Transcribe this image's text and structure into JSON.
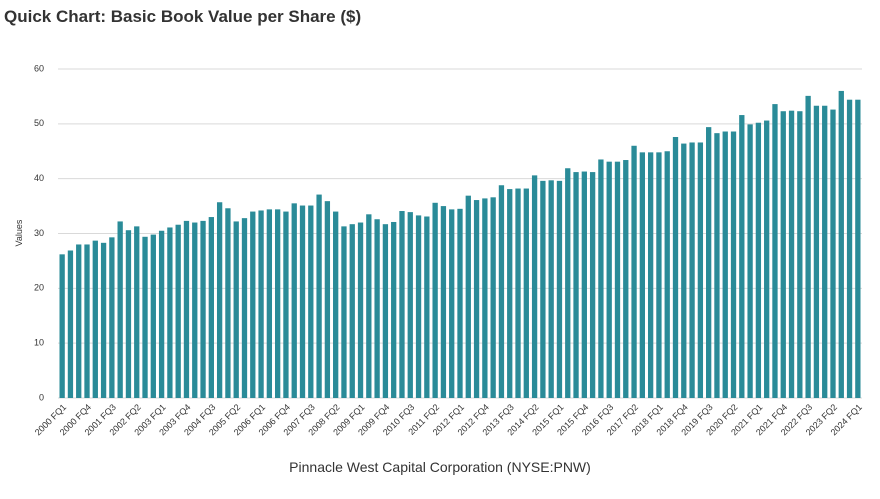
{
  "chart_data": {
    "type": "bar",
    "title": "Quick Chart: Basic Book Value per Share ($)",
    "y_label": "Values",
    "x_label": "Pinnacle West Capital Corporation (NYSE:PNW)",
    "color": "#2a8b98",
    "grid": true,
    "ylim": [
      0,
      60
    ],
    "yticks": [
      0,
      10,
      20,
      30,
      40,
      50,
      60
    ],
    "categories": [
      "2000 FQ1",
      null,
      null,
      "2000 FQ4",
      null,
      null,
      "2001 FQ3",
      null,
      null,
      "2002 FQ2",
      null,
      null,
      "2003 FQ1",
      null,
      null,
      "2003 FQ4",
      null,
      null,
      "2004 FQ3",
      null,
      null,
      "2005 FQ2",
      null,
      null,
      "2006 FQ1",
      null,
      null,
      "2006 FQ4",
      null,
      null,
      "2007 FQ3",
      null,
      null,
      "2008 FQ2",
      null,
      null,
      "2009 FQ1",
      null,
      null,
      "2009 FQ4",
      null,
      null,
      "2010 FQ3",
      null,
      null,
      "2011 FQ2",
      null,
      null,
      "2012 FQ1",
      null,
      null,
      "2012 FQ4",
      null,
      null,
      "2013 FQ3",
      null,
      null,
      "2014 FQ2",
      null,
      null,
      "2015 FQ1",
      null,
      null,
      "2015 FQ4",
      null,
      null,
      "2016 FQ3",
      null,
      null,
      "2017 FQ2",
      null,
      null,
      "2018 FQ1",
      null,
      null,
      "2018 FQ4",
      null,
      null,
      "2019 FQ3",
      null,
      null,
      "2020 FQ2",
      null,
      null,
      "2021 FQ1",
      null,
      null,
      "2021 FQ4",
      null,
      null,
      "2022 FQ3",
      null,
      null,
      "2023 FQ2",
      null,
      null,
      "2024 FQ1"
    ],
    "values": [
      26.2,
      26.9,
      28.0,
      28.0,
      28.7,
      28.3,
      29.3,
      32.2,
      30.6,
      31.3,
      29.4,
      29.8,
      30.5,
      31.1,
      31.6,
      32.3,
      32.0,
      32.3,
      33.0,
      35.7,
      34.6,
      32.2,
      32.8,
      34.0,
      34.2,
      34.4,
      34.4,
      34.0,
      35.5,
      35.1,
      35.1,
      37.1,
      35.9,
      34.0,
      31.3,
      31.7,
      32.0,
      33.5,
      32.6,
      31.7,
      32.1,
      34.1,
      33.9,
      33.3,
      33.1,
      35.6,
      35.0,
      34.4,
      34.5,
      36.9,
      36.1,
      36.4,
      36.6,
      38.8,
      38.1,
      38.2,
      38.2,
      40.6,
      39.6,
      39.7,
      39.6,
      41.9,
      41.2,
      41.3,
      41.2,
      43.5,
      43.1,
      43.1,
      43.4,
      46.0,
      44.8,
      44.8,
      44.8,
      45.0,
      47.6,
      46.4,
      46.6,
      46.6,
      49.4,
      48.3,
      48.6,
      48.6,
      51.6,
      49.9,
      50.2,
      50.6,
      53.6,
      52.3,
      52.4,
      52.3,
      55.1,
      53.3,
      53.3,
      52.6,
      56.0,
      54.4,
      54.4
    ]
  }
}
